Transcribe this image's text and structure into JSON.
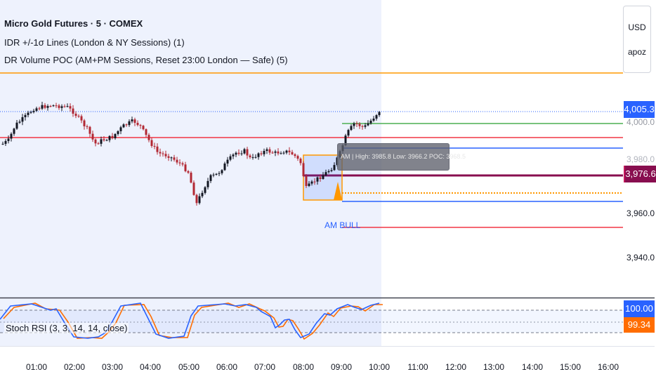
{
  "symbol": {
    "title": "Micro Gold Futures · 5 · COMEX"
  },
  "indicators": [
    {
      "label": "IDR +/-1σ Lines (London & NY Sessions) (1)"
    },
    {
      "label": "DR Volume POC (AM+PM Sessions, Reset 23:00 London — Safe) (5)"
    }
  ],
  "currency_menu": {
    "currency": "USD",
    "name": "apoz"
  },
  "price_axis": {
    "labels": [
      "3,960.0",
      "3,940.0"
    ],
    "faded_label": "4,000.0",
    "faded_label_2": "3,980.0"
  },
  "price_badges": {
    "last_price": "4,005.3",
    "poc_price": "3,976.6"
  },
  "session_box": {
    "tooltip": "AM | High: 3985.8 Low: 3966.2 POC: 3968.5",
    "label": "AM BULL",
    "high": 3985.8,
    "low": 3966.2,
    "poc": 3968.5
  },
  "stoch_rsi": {
    "label": "Stoch RSI (3, 3, 14, 14, close)",
    "k_value": "100.00",
    "d_value": "99.34"
  },
  "time_axis": [
    "01:00",
    "02:00",
    "03:00",
    "04:00",
    "05:00",
    "06:00",
    "07:00",
    "08:00",
    "09:00",
    "10:00",
    "11:00",
    "12:00",
    "13:00",
    "14:00",
    "15:00",
    "16:00"
  ],
  "colors": {
    "up": "#131722",
    "down": "#b22833",
    "orange": "#ff9800",
    "blue": "#2962ff",
    "red": "#f23645",
    "green": "#4caf50",
    "maroon": "#880e4f",
    "session_bg": "#eef2fd",
    "stoch_k": "#2962ff",
    "stoch_d": "#ff6d00"
  }
}
